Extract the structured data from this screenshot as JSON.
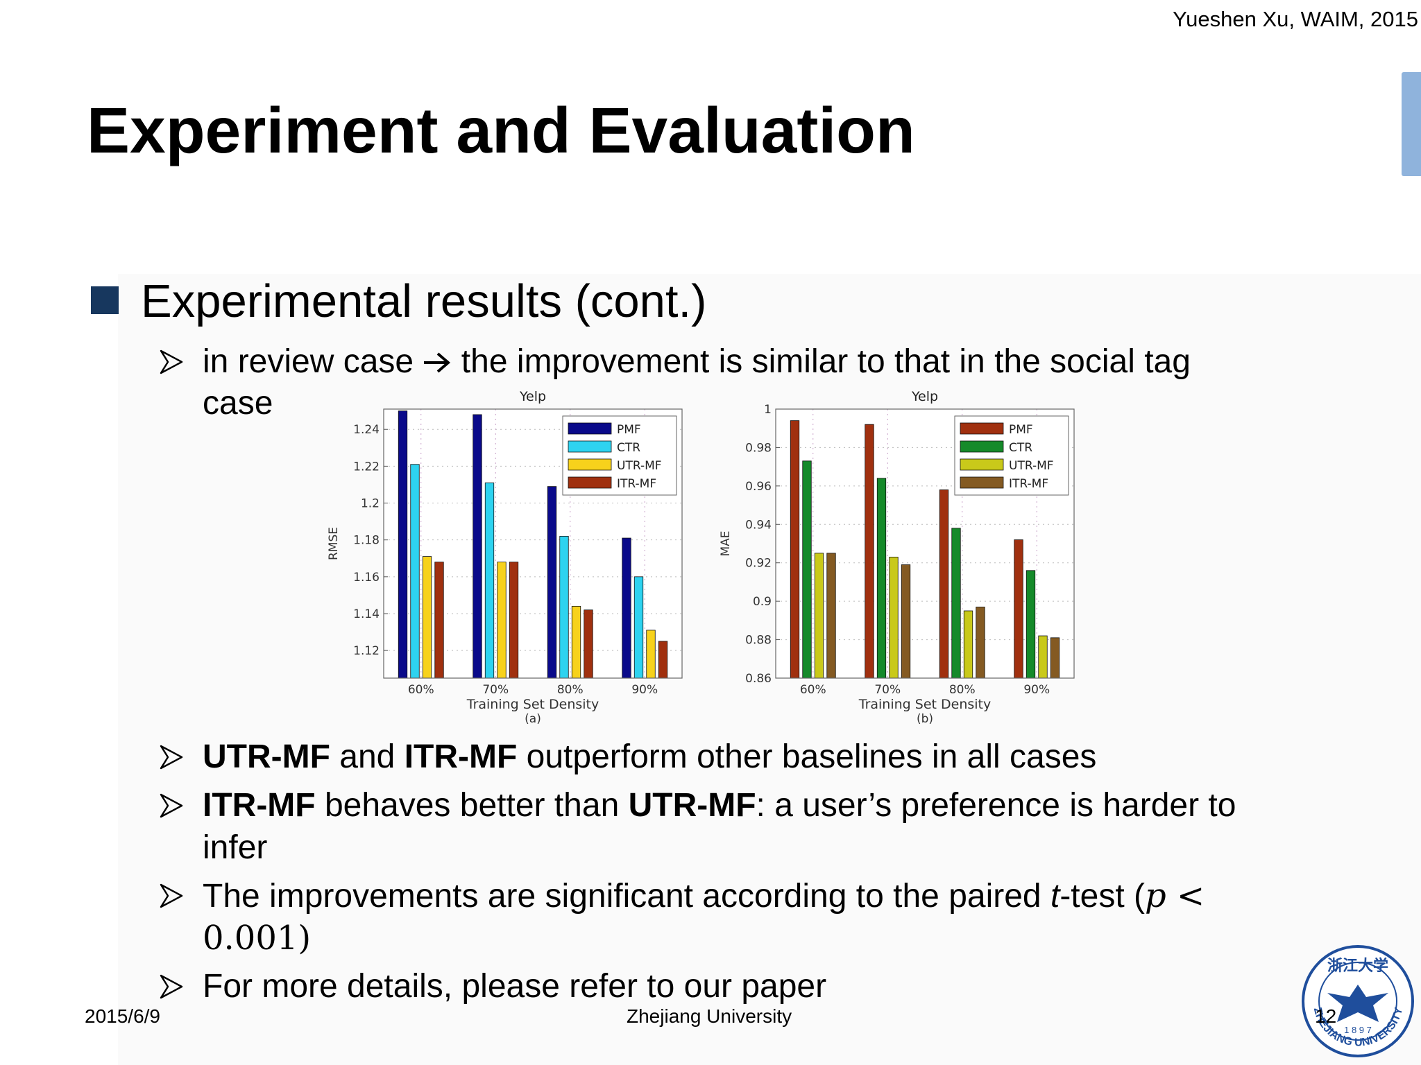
{
  "header": {
    "note": "Yueshen Xu, WAIM, 2015"
  },
  "slide": {
    "title": "Experiment and Evaluation"
  },
  "bullets": {
    "level1": "Experimental results (cont.)",
    "review": {
      "part1": "in review case ",
      "part2": " the improvement is similar to that in the social tag",
      "part3": "case"
    },
    "b2": {
      "s1": "UTR-MF",
      "s2": " and ",
      "s3": "ITR-MF",
      "s4": " outperform other baselines in all cases"
    },
    "b3": {
      "s1": "ITR-MF",
      "s2": " behaves better than ",
      "s3": "UTR-MF",
      "s4": ": a user’s preference is harder to",
      "s5": "infer"
    },
    "b4": {
      "s1": "The improvements are significant according to the paired ",
      "s2": "t",
      "s3": "-test (",
      "s4": "p",
      "s5": " <",
      "s6": "0.001",
      "s7": ")"
    },
    "b5": "For more details, please refer to our paper"
  },
  "footer": {
    "date": "2015/6/9",
    "center": "Zhejiang University",
    "page": "12"
  },
  "seal": {
    "chinese": "浙江大学",
    "year": "1897",
    "name": "ZHEJIANG UNIVERSITY"
  },
  "chart_data": [
    {
      "type": "bar",
      "title": "Yelp",
      "xlabel": "Training Set Density",
      "ylabel": "RMSE",
      "caption": "(a)",
      "categories": [
        "60%",
        "70%",
        "80%",
        "90%"
      ],
      "ylim": [
        1.105,
        1.251
      ],
      "yticks": [
        1.12,
        1.14,
        1.16,
        1.18,
        1.2,
        1.22,
        1.24
      ],
      "ytick_labels": [
        "1.12",
        "1.14",
        "1.16",
        "1.18",
        "1.2",
        "1.22",
        "1.24"
      ],
      "grid": true,
      "legend": "top-right",
      "series": [
        {
          "name": "PMF",
          "color": "#0a0a8a",
          "values": [
            1.25,
            1.248,
            1.209,
            1.181
          ]
        },
        {
          "name": "CTR",
          "color": "#2ed3f0",
          "values": [
            1.221,
            1.211,
            1.182,
            1.16
          ]
        },
        {
          "name": "UTR-MF",
          "color": "#f7d21c",
          "values": [
            1.171,
            1.168,
            1.144,
            1.131
          ]
        },
        {
          "name": "ITR-MF",
          "color": "#a0300f",
          "values": [
            1.168,
            1.168,
            1.142,
            1.125
          ]
        }
      ]
    },
    {
      "type": "bar",
      "title": "Yelp",
      "xlabel": "Training Set Density",
      "ylabel": "MAE",
      "caption": "(b)",
      "categories": [
        "60%",
        "70%",
        "80%",
        "90%"
      ],
      "ylim": [
        0.86,
        1.0
      ],
      "yticks": [
        0.86,
        0.88,
        0.9,
        0.92,
        0.94,
        0.96,
        0.98,
        1.0
      ],
      "ytick_labels": [
        "0.86",
        "0.88",
        "0.9",
        "0.92",
        "0.94",
        "0.96",
        "0.98",
        "1"
      ],
      "grid": true,
      "legend": "top-right",
      "series": [
        {
          "name": "PMF",
          "color": "#a0300f",
          "values": [
            0.994,
            0.992,
            0.958,
            0.932
          ]
        },
        {
          "name": "CTR",
          "color": "#158a2a",
          "values": [
            0.973,
            0.964,
            0.938,
            0.916
          ]
        },
        {
          "name": "UTR-MF",
          "color": "#c9c91a",
          "values": [
            0.925,
            0.923,
            0.895,
            0.882
          ]
        },
        {
          "name": "ITR-MF",
          "color": "#845a22",
          "values": [
            0.925,
            0.919,
            0.897,
            0.881
          ]
        }
      ]
    }
  ]
}
